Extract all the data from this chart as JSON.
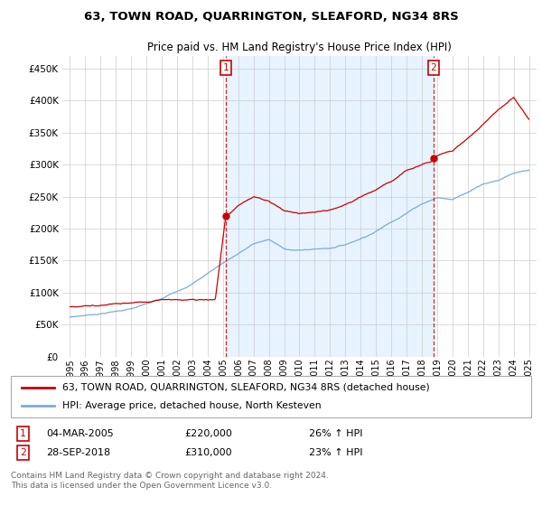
{
  "title": "63, TOWN ROAD, QUARRINGTON, SLEAFORD, NG34 8RS",
  "subtitle": "Price paid vs. HM Land Registry's House Price Index (HPI)",
  "legend_line1": "63, TOWN ROAD, QUARRINGTON, SLEAFORD, NG34 8RS (detached house)",
  "legend_line2": "HPI: Average price, detached house, North Kesteven",
  "annotation1_date": "04-MAR-2005",
  "annotation1_price": "£220,000",
  "annotation1_hpi": "26% ↑ HPI",
  "annotation1_year": 2005.17,
  "annotation1_value": 220000,
  "annotation2_date": "28-SEP-2018",
  "annotation2_price": "£310,000",
  "annotation2_hpi": "23% ↑ HPI",
  "annotation2_year": 2018.75,
  "annotation2_value": 310000,
  "house_color": "#cc0000",
  "hpi_color": "#7aadd4",
  "shade_color": "#ddeeff",
  "annotation_color": "#cc0000",
  "background_color": "#ffffff",
  "grid_color": "#cccccc",
  "ylim": [
    0,
    470000
  ],
  "yticks": [
    0,
    50000,
    100000,
    150000,
    200000,
    250000,
    300000,
    350000,
    400000,
    450000
  ],
  "xlim_start": 1994.5,
  "xlim_end": 2025.5,
  "footer": "Contains HM Land Registry data © Crown copyright and database right 2024.\nThis data is licensed under the Open Government Licence v3.0."
}
